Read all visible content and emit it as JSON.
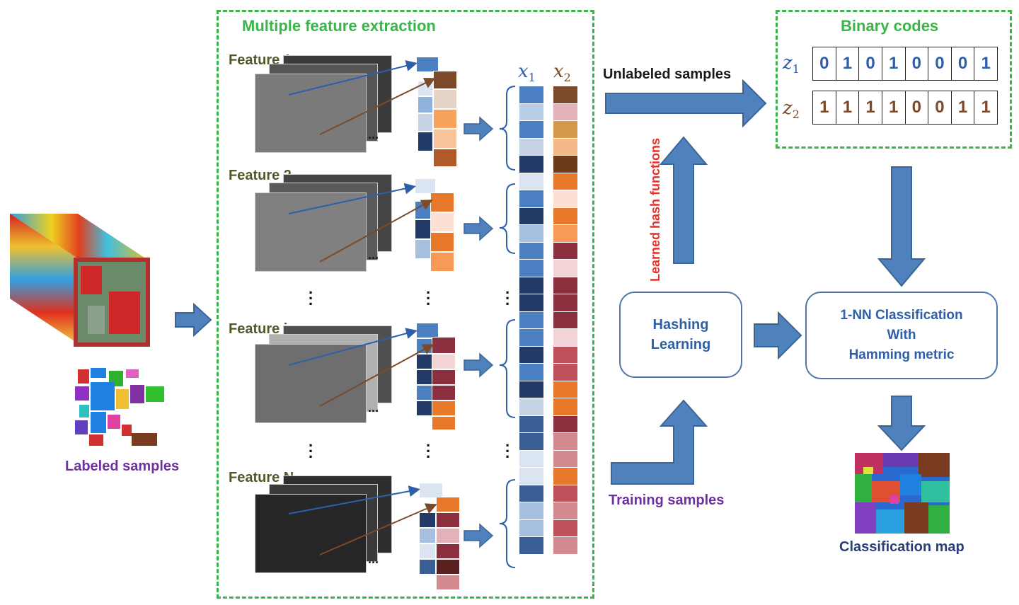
{
  "labels": {
    "multiple_feature_extraction": "Multiple feature extraction",
    "feature_1": "Feature 1",
    "feature_2": "Feature 2",
    "feature_i": "Feature i",
    "feature_n": "Feature N",
    "labeled_samples": "Labeled samples",
    "unlabeled_samples": "Unlabeled samples",
    "training_samples": "Training samples",
    "learned_hash_functions": "Learned hash functions",
    "binary_codes": "Binary codes",
    "hashing_learning_line1": "Hashing",
    "hashing_learning_line2": "Learning",
    "nn_line1": "1-NN Classification",
    "nn_line2": "With",
    "nn_line3": "Hamming metric",
    "classification_map": "Classification map",
    "ellipsis": "..."
  },
  "math": {
    "x_symbol": "x",
    "x1_sub": "1",
    "x2_sub": "2",
    "z_symbol": "z",
    "z1_sub": "1",
    "z2_sub": "2"
  },
  "binary_codes": {
    "z1": [
      "0",
      "1",
      "0",
      "1",
      "0",
      "0",
      "0",
      "1"
    ],
    "z2": [
      "1",
      "1",
      "1",
      "1",
      "0",
      "0",
      "1",
      "1"
    ]
  },
  "colors": {
    "dashed_border": "#3ab54a",
    "arrow_fill": "#4f81bd",
    "arrow_stroke": "#3a6596",
    "z1_bits": "#2f5fa8",
    "z2_bits": "#7b4a2a",
    "x1_blues": [
      "#4a7fc1",
      "#b8cfea",
      "#4a7fc1",
      "#c5d3e4",
      "#233a66",
      "#dbe5f1",
      "#4a7fc1",
      "#233a66",
      "#a8c0df",
      "#4a7fc1",
      "#4a7fc1",
      "#233a66",
      "#233a66",
      "#4a7fc1",
      "#4a7fc1",
      "#233a66",
      "#4a7fc1",
      "#233a66",
      "#c5d3e4",
      "#3a5f95",
      "#3a5f95",
      "#dbe5f1",
      "#dbe5f1",
      "#3a5f95",
      "#a8c0df",
      "#a8c0df",
      "#3a5f95"
    ],
    "x2_browns": [
      "#7b4a2a",
      "#e3b1b8",
      "#d49a4a",
      "#f4b98a",
      "#6b3a1a",
      "#e8782a",
      "#fbe0d3",
      "#e8782a",
      "#f79a55",
      "#8c3040",
      "#f2d3d6",
      "#8c3040",
      "#8c3040",
      "#8c3040",
      "#f2d3d6",
      "#c0505a",
      "#c0505a",
      "#e8782a",
      "#e8782a",
      "#8c3040",
      "#d48890",
      "#d48890",
      "#e8782a",
      "#c0505a",
      "#d48890",
      "#c0505a",
      "#d48890"
    ]
  }
}
